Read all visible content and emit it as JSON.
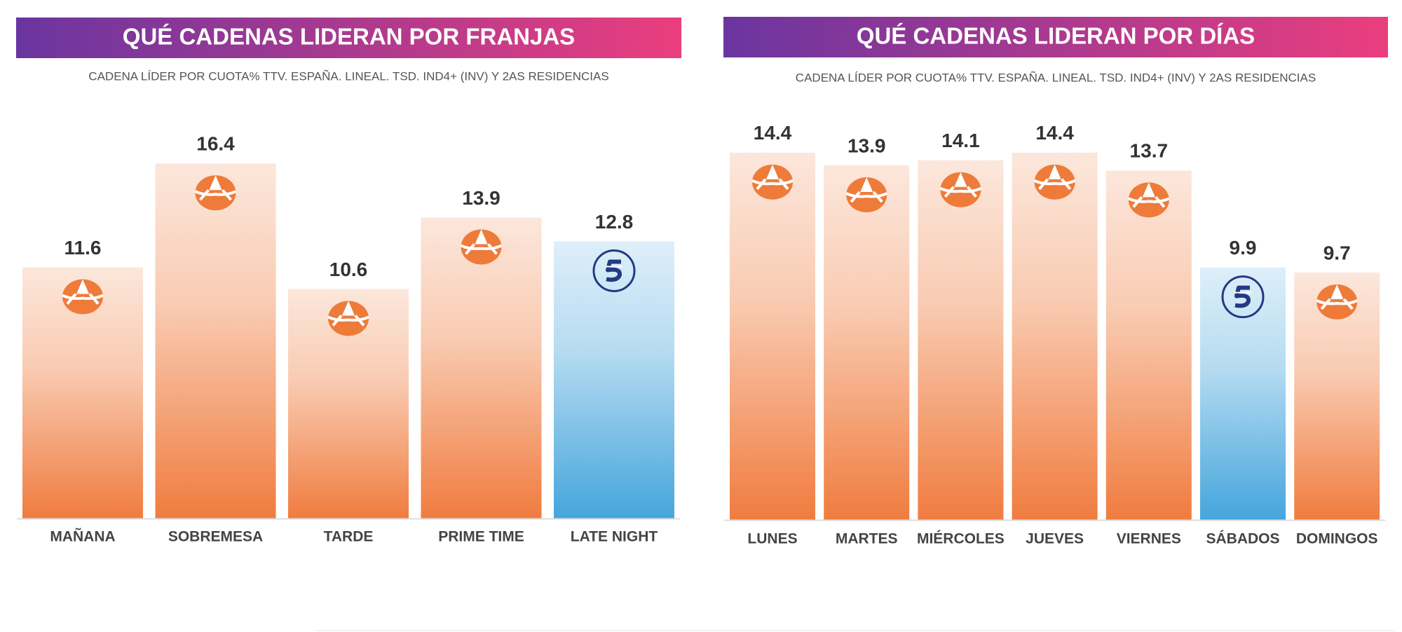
{
  "chart_data": [
    {
      "type": "bar",
      "title": "QUÉ CADENAS LIDERAN POR FRANJAS",
      "subtitle": "CADENA LÍDER POR CUOTA% TTV. ESPAÑA. LINEAL. TSD. IND4+ (INV) Y 2AS RESIDENCIAS",
      "categories": [
        "MAÑANA",
        "SOBREMESA",
        "TARDE",
        "PRIME TIME",
        "LATE NIGHT"
      ],
      "values": [
        11.6,
        16.4,
        10.6,
        13.9,
        12.8
      ],
      "colors": [
        "#f07c3f",
        "#f07c3f",
        "#f07c3f",
        "#f07c3f",
        "#45a5dc"
      ]
    },
    {
      "type": "bar",
      "title": "QUÉ CADENAS LIDERAN POR DÍAS",
      "subtitle": "CADENA LÍDER POR CUOTA% TTV. ESPAÑA. LINEAL. TSD. IND4+ (INV) Y 2AS RESIDENCIAS",
      "categories": [
        "LUNES",
        "MARTES",
        "MIÉRCOLES",
        "JUEVES",
        "VIERNES",
        "SÁBADOS",
        "DOMINGOS"
      ],
      "values": [
        14.4,
        13.9,
        14.1,
        14.4,
        13.7,
        9.9,
        9.7
      ],
      "colors": [
        "#f07c3f",
        "#f07c3f",
        "#f07c3f",
        "#f07c3f",
        "#f07c3f",
        "#45a5dc",
        "#f07c3f"
      ]
    }
  ]
}
